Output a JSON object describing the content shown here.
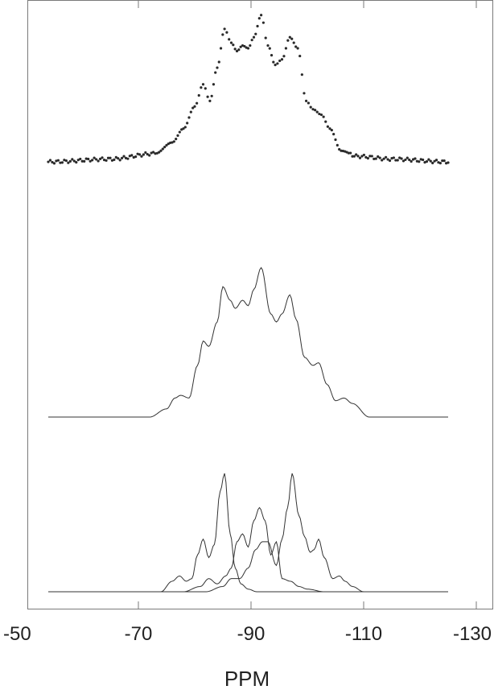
{
  "chart_data": {
    "type": "line",
    "xlabel": "PPM",
    "ylabel": "",
    "title": "",
    "x_axis": {
      "reversed": true,
      "range": [
        -50,
        -130
      ],
      "ticks": [
        -50,
        -70,
        -90,
        -110,
        -130
      ],
      "tick_labels": [
        "-50",
        "-70",
        "-90",
        "-110",
        "-130"
      ]
    },
    "grid": false,
    "legend": "none",
    "series": [
      {
        "style": "dots",
        "offset": 0.34,
        "x": [
          -54,
          -65,
          -73,
          -76,
          -78,
          -80,
          -81.5,
          -82.7,
          -84,
          -85.3,
          -86.5,
          -87.5,
          -88.5,
          -89.5,
          -90.5,
          -91.8,
          -93,
          -94.3,
          -95.5,
          -96.9,
          -98.3,
          -99.8,
          -101,
          -102.5,
          -104,
          -106,
          -109,
          -115,
          -125
        ],
        "y": [
          0.0,
          0.01,
          0.03,
          0.07,
          0.12,
          0.2,
          0.28,
          0.22,
          0.34,
          0.48,
          0.43,
          0.4,
          0.42,
          0.41,
          0.45,
          0.53,
          0.42,
          0.35,
          0.37,
          0.45,
          0.41,
          0.22,
          0.19,
          0.17,
          0.12,
          0.04,
          0.02,
          0.01,
          0.0
        ]
      },
      {
        "style": "line",
        "offset": 0.0,
        "x": [
          -54,
          -72,
          -75,
          -76.5,
          -77.5,
          -79,
          -80.5,
          -81.5,
          -82.5,
          -84,
          -85,
          -86.3,
          -87.2,
          -88.5,
          -89.5,
          -90.5,
          -91.8,
          -93.5,
          -94.5,
          -95.5,
          -96.9,
          -98,
          -99.5,
          -101,
          -102,
          -103.5,
          -105,
          -106.5,
          -108,
          -111,
          -125
        ],
        "y": [
          0.0,
          0.0,
          0.03,
          0.07,
          0.08,
          0.07,
          0.19,
          0.28,
          0.26,
          0.35,
          0.48,
          0.43,
          0.4,
          0.43,
          0.41,
          0.47,
          0.55,
          0.38,
          0.35,
          0.38,
          0.45,
          0.36,
          0.22,
          0.19,
          0.2,
          0.12,
          0.06,
          0.07,
          0.05,
          0.0,
          0.0
        ]
      },
      {
        "style": "line",
        "offset": 0.0,
        "components": [
          {
            "x": [
              -54,
              -74,
              -76,
              -77.3,
              -78.5,
              -79.5,
              -80.5,
              -81.5,
              -82.5,
              -83.5,
              -84.5,
              -85.3,
              -86.3,
              -87.2,
              -88.2,
              -89.5,
              -91,
              -125
            ],
            "y": [
              0.0,
              0.0,
              0.04,
              0.06,
              0.04,
              0.05,
              0.14,
              0.2,
              0.13,
              0.18,
              0.38,
              0.45,
              0.22,
              0.09,
              0.03,
              0.01,
              0.0,
              0.0
            ]
          },
          {
            "x": [
              -54,
              -78,
              -81,
              -82.5,
              -84,
              -85.5,
              -86.5,
              -87.5,
              -88.5,
              -89.5,
              -90.5,
              -91.5,
              -92.5,
              -93.5,
              -94.5,
              -95.5,
              -97,
              -98.5,
              -100,
              -103,
              -125
            ],
            "y": [
              0.0,
              0.0,
              0.02,
              0.05,
              0.03,
              0.06,
              0.09,
              0.19,
              0.22,
              0.17,
              0.27,
              0.32,
              0.27,
              0.14,
              0.19,
              0.05,
              0.04,
              0.02,
              0.01,
              0.0,
              0.0
            ]
          },
          {
            "x": [
              -54,
              -82,
              -85,
              -86.5,
              -88,
              -89.5,
              -90.8,
              -92,
              -93,
              -94.5,
              -95.5,
              -96.5,
              -97.3,
              -98.5,
              -99.5,
              -100.5,
              -101.2,
              -102,
              -103,
              -104.5,
              -105.7,
              -106.7,
              -108,
              -110,
              -125
            ],
            "y": [
              0.0,
              0.0,
              0.02,
              0.05,
              0.05,
              0.09,
              0.16,
              0.19,
              0.19,
              0.1,
              0.2,
              0.32,
              0.45,
              0.29,
              0.21,
              0.15,
              0.16,
              0.2,
              0.13,
              0.05,
              0.06,
              0.04,
              0.02,
              0.0,
              0.0
            ]
          }
        ]
      }
    ]
  }
}
